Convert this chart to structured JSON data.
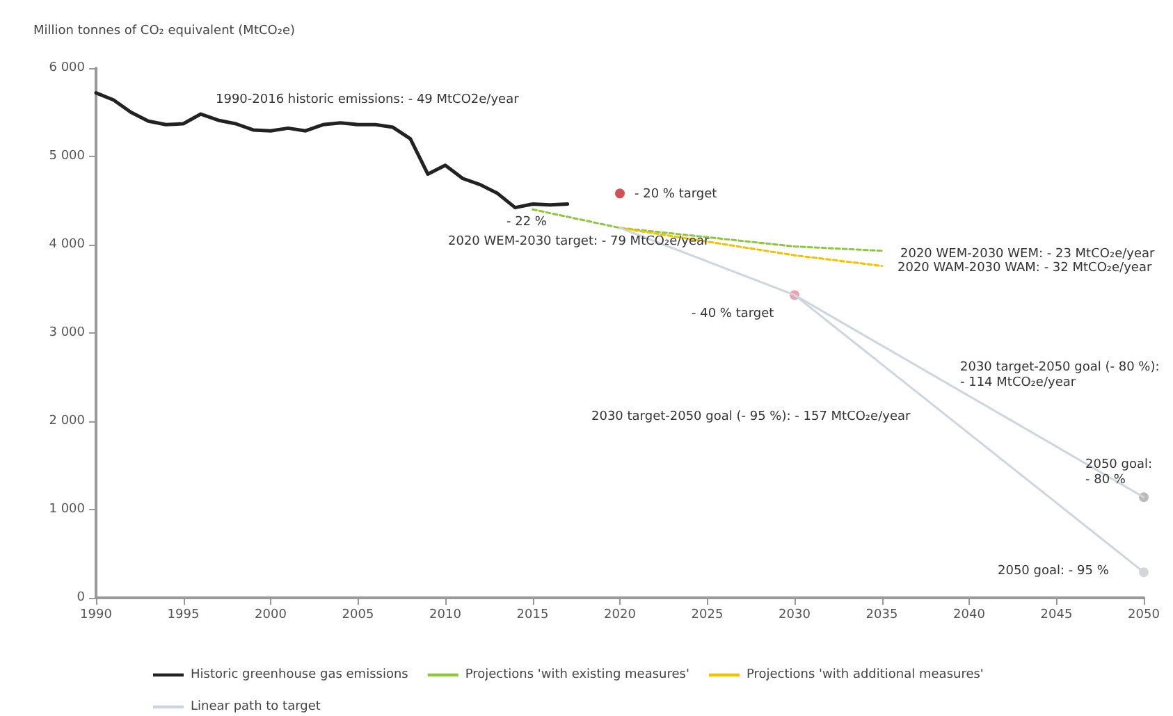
{
  "chart_data": {
    "type": "line",
    "ylabel": "Million tonnes of CO₂ equivalent (MtCO₂e)",
    "xlim": [
      1990,
      2050
    ],
    "xticks": [
      1990,
      1995,
      2000,
      2005,
      2010,
      2015,
      2020,
      2025,
      2030,
      2035,
      2040,
      2045,
      2050
    ],
    "ylim": [
      0,
      6000
    ],
    "yticks": [
      0,
      {
        "value": 1000,
        "label": "1 000"
      },
      {
        "value": 2000,
        "label": "2 000"
      },
      {
        "value": 3000,
        "label": "3 000"
      },
      {
        "value": 4000,
        "label": "4 000"
      },
      {
        "value": 5000,
        "label": "5 000"
      },
      {
        "value": 6000,
        "label": "6 000"
      }
    ],
    "grid": false,
    "legend": "bottom",
    "marker": "none",
    "series": [
      {
        "name": "Historic greenhouse gas emissions",
        "color": "#222222",
        "line_style": "solid",
        "x": [
          1990,
          1991,
          1992,
          1993,
          1994,
          1995,
          1996,
          1997,
          1998,
          1999,
          2000,
          2001,
          2002,
          2003,
          2004,
          2005,
          2006,
          2007,
          2008,
          2009,
          2010,
          2011,
          2012,
          2013,
          2014,
          2015,
          2016,
          2017
        ],
        "values": [
          5720,
          5640,
          5500,
          5400,
          5360,
          5370,
          5480,
          5410,
          5370,
          5300,
          5290,
          5320,
          5290,
          5360,
          5380,
          5360,
          5360,
          5330,
          5200,
          4800,
          4900,
          4750,
          4680,
          4580,
          4420,
          4460,
          4450,
          4460
        ]
      },
      {
        "name": "Projections 'with existing measures'",
        "color": "#8dc63f",
        "line_style": "dashed",
        "x": [
          2015,
          2020,
          2030,
          2035
        ],
        "values": [
          4400,
          4190,
          3980,
          3930
        ]
      },
      {
        "name": "Projections 'with additional measures'",
        "color": "#f2c100",
        "line_style": "dashed",
        "x": [
          2020,
          2030,
          2035
        ],
        "values": [
          4190,
          3880,
          3760
        ]
      },
      {
        "name": "Linear path to target",
        "color": "#cdd6df",
        "line_style": "solid",
        "x": [
          2020,
          2030,
          2050
        ],
        "values": [
          4190,
          3430,
          1140
        ]
      },
      {
        "color": "#cdd6df",
        "line_style": "solid",
        "x": [
          2030,
          2050
        ],
        "values": [
          3430,
          290
        ]
      },
      {
        "type": "scatter",
        "marker": "circle",
        "x": [
          2020,
          2030,
          2050,
          2050
        ],
        "values": [
          4580,
          3430,
          1140,
          290
        ],
        "colors": [
          "#c0282d",
          "#e88a9a",
          "#aaaaaa",
          "#cccccc"
        ]
      }
    ],
    "annotations": [
      "1990-2016 historic emissions: - 49 MtCO2e/year",
      "- 22 %",
      "- 20 % target",
      "2020 WEM-2030 target: - 79 MtCO₂e/year",
      "- 40 % target",
      "2020 WEM-2030 WEM: - 23 MtCO₂e/year",
      "2020 WAM-2030 WAM: - 32 MtCO₂e/year",
      "2030 target-2050 goal (- 80 %):\n- 114 MtCO₂e/year",
      "2030 target-2050 goal (- 95 %): - 157 MtCO₂e/year",
      "2050 goal:\n- 80 %",
      "2050 goal: - 95 %"
    ]
  }
}
